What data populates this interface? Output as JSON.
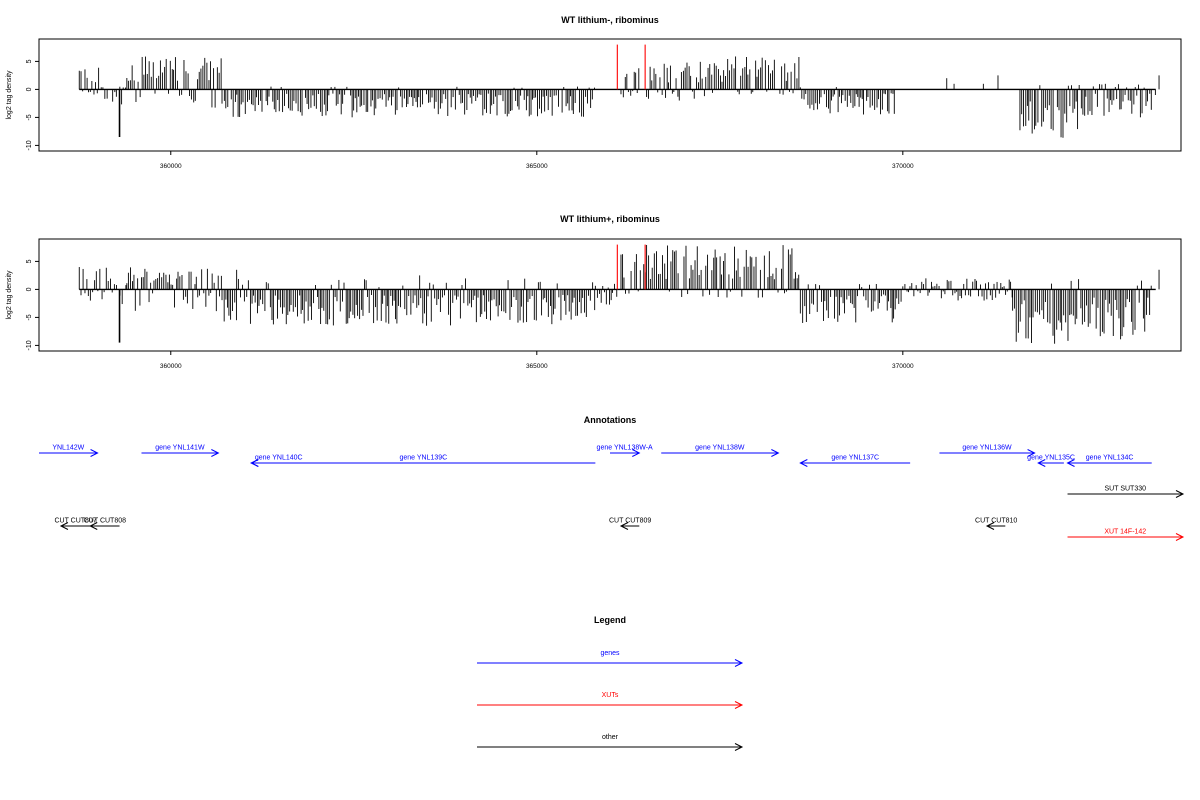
{
  "chart_data": [
    {
      "type": "bar",
      "title": "WT lithium-, ribominus",
      "ylabel": "log2 tag density",
      "xlabel": "",
      "xlim": [
        358200,
        373800
      ],
      "ylim": [
        -11,
        9
      ],
      "xticks": [
        360000,
        365000,
        370000
      ],
      "xtick_labels": [
        "360000",
        "365000",
        "370000"
      ],
      "yticks": [
        5,
        0,
        -5,
        -10
      ],
      "ytick_labels": [
        "5",
        "0",
        "-5",
        "-10"
      ],
      "series_color": "#000000",
      "highlight_color": "#ff0000",
      "highlights": [
        {
          "x": 366100,
          "y": 8
        },
        {
          "x": 366480,
          "y": 8
        }
      ],
      "segments": [
        {
          "start": 358750,
          "end": 359050,
          "max": 4,
          "min": -1
        },
        {
          "start": 359050,
          "end": 359350,
          "max": 0.5,
          "min": -3,
          "spike": {
            "x": 359300,
            "y": -8.5
          }
        },
        {
          "start": 359350,
          "end": 359400,
          "max": 0.5,
          "min": -1
        },
        {
          "start": 359400,
          "end": 360700,
          "max": 6,
          "min": -3.5,
          "bias": 0.75
        },
        {
          "start": 360700,
          "end": 365800,
          "max": 0.5,
          "min": -5,
          "bias": 0.1
        },
        {
          "start": 366150,
          "end": 366400,
          "max": 4,
          "min": -1.5,
          "bias": 0.6
        },
        {
          "start": 366500,
          "end": 367400,
          "max": 5,
          "min": -2,
          "bias": 0.75
        },
        {
          "start": 367400,
          "end": 368600,
          "max": 6,
          "min": -1,
          "bias": 0.8
        },
        {
          "start": 368600,
          "end": 369900,
          "max": 0.5,
          "min": -4.5,
          "bias": 0.1
        },
        {
          "start": 371600,
          "end": 372500,
          "max": 1,
          "min": -9,
          "bias": 0.1
        },
        {
          "start": 372500,
          "end": 373400,
          "max": 1,
          "min": -5,
          "bias": 0.2
        }
      ],
      "isolated": [
        {
          "x": 370600,
          "y": 2
        },
        {
          "x": 370700,
          "y": 1
        },
        {
          "x": 371300,
          "y": 2.5
        },
        {
          "x": 371100,
          "y": 1
        },
        {
          "x": 373500,
          "y": 2.5
        },
        {
          "x": 373450,
          "y": -1
        }
      ]
    },
    {
      "type": "bar",
      "title": "WT lithium+, ribominus",
      "ylabel": "log2 tag density",
      "xlabel": "",
      "xlim": [
        358200,
        373800
      ],
      "ylim": [
        -11,
        9
      ],
      "xticks": [
        360000,
        365000,
        370000
      ],
      "xtick_labels": [
        "360000",
        "365000",
        "370000"
      ],
      "yticks": [
        5,
        0,
        -5,
        -10
      ],
      "ytick_labels": [
        "5",
        "0",
        "-5",
        "-10"
      ],
      "series_color": "#000000",
      "highlight_color": "#ff0000",
      "highlights": [
        {
          "x": 366100,
          "y": 8
        },
        {
          "x": 366480,
          "y": 8
        }
      ],
      "segments": [
        {
          "start": 358750,
          "end": 359200,
          "max": 4.5,
          "min": -2,
          "bias": 0.7
        },
        {
          "start": 359200,
          "end": 359400,
          "max": 1,
          "min": -3,
          "spike": {
            "x": 359300,
            "y": -9.5
          }
        },
        {
          "start": 359400,
          "end": 360700,
          "max": 4,
          "min": -4,
          "bias": 0.55
        },
        {
          "start": 360700,
          "end": 365800,
          "max": 2,
          "min": -6.5,
          "bias": 0.12
        },
        {
          "start": 365800,
          "end": 366100,
          "max": 1,
          "min": -3,
          "bias": 0.3
        },
        {
          "start": 366150,
          "end": 366500,
          "max": 7,
          "min": -1,
          "bias": 0.75
        },
        {
          "start": 366500,
          "end": 368600,
          "max": 8,
          "min": -1.5,
          "bias": 0.8
        },
        {
          "start": 368600,
          "end": 370000,
          "max": 1,
          "min": -6,
          "bias": 0.15
        },
        {
          "start": 370000,
          "end": 371500,
          "max": 2,
          "min": -2,
          "bias": 0.4
        },
        {
          "start": 371500,
          "end": 372300,
          "max": 3.5,
          "min": -10,
          "bias": 0.1
        },
        {
          "start": 372300,
          "end": 373400,
          "max": 2.5,
          "min": -9,
          "bias": 0.15
        }
      ],
      "isolated": [
        {
          "x": 360900,
          "y": 3.5
        },
        {
          "x": 363400,
          "y": 2.5
        },
        {
          "x": 373500,
          "y": 3.5
        }
      ]
    }
  ],
  "annotations": {
    "title": "Annotations",
    "features": [
      {
        "label": "YNL142W",
        "x1": 358200,
        "x2": 359000,
        "dir": "right",
        "color": "#0000ff",
        "row": 0
      },
      {
        "label": "gene YNL141W",
        "x1": 359600,
        "x2": 360650,
        "dir": "right",
        "color": "#0000ff",
        "row": 0
      },
      {
        "label": "gene YNL140C",
        "x1": 361100,
        "x2": 361850,
        "dir": "left",
        "color": "#0000ff",
        "row": 1
      },
      {
        "label": "gene YNL139C",
        "x1": 361100,
        "x2": 365800,
        "dir": "left",
        "color": "#0000ff",
        "row": 1
      },
      {
        "label": "gene YNL138W-A",
        "x1": 366000,
        "x2": 366400,
        "dir": "right",
        "color": "#0000ff",
        "row": 0
      },
      {
        "label": "gene YNL138W",
        "x1": 366700,
        "x2": 368300,
        "dir": "right",
        "color": "#0000ff",
        "row": 0
      },
      {
        "label": "gene YNL137C",
        "x1": 368600,
        "x2": 370100,
        "dir": "left",
        "color": "#0000ff",
        "row": 1
      },
      {
        "label": "gene YNL136W",
        "x1": 370500,
        "x2": 371800,
        "dir": "right",
        "color": "#0000ff",
        "row": 0
      },
      {
        "label": "gene YNL135C",
        "x1": 371850,
        "x2": 372200,
        "dir": "left",
        "color": "#0000ff",
        "row": 1
      },
      {
        "label": "gene YNL134C",
        "x1": 372250,
        "x2": 373400,
        "dir": "left",
        "color": "#0000ff",
        "row": 1
      },
      {
        "label": "SUT SUT330",
        "x1": 372250,
        "x2": 374100,
        "dir": "right",
        "color": "#000000",
        "row": 2
      },
      {
        "label": "CUT CUT807",
        "x1": 358500,
        "x2": 358900,
        "dir": "left",
        "color": "#000000",
        "row": 3
      },
      {
        "label": "CUT CUT808",
        "x1": 358900,
        "x2": 359300,
        "dir": "left",
        "color": "#000000",
        "row": 3
      },
      {
        "label": "CUT CUT809",
        "x1": 366150,
        "x2": 366400,
        "dir": "left",
        "color": "#000000",
        "row": 3
      },
      {
        "label": "CUT CUT810",
        "x1": 371150,
        "x2": 371400,
        "dir": "left",
        "color": "#000000",
        "row": 3
      },
      {
        "label": "XUT 14F-142",
        "x1": 372250,
        "x2": 374150,
        "dir": "right",
        "color": "#ff0000",
        "row": 4
      }
    ]
  },
  "legend": {
    "title": "Legend",
    "items": [
      {
        "label": "genes",
        "color": "#0000ff"
      },
      {
        "label": "XUTs",
        "color": "#ff0000"
      },
      {
        "label": "other",
        "color": "#000000"
      }
    ]
  }
}
